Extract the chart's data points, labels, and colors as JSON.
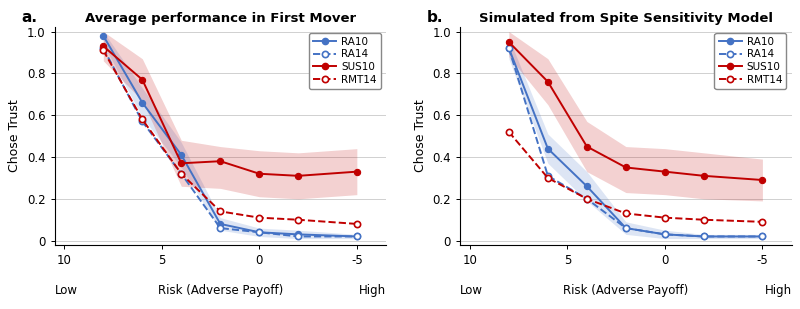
{
  "x_ticks": [
    10,
    5,
    0,
    -5
  ],
  "x_ticklabels": [
    "10",
    "5",
    "0",
    "-5"
  ],
  "xlim": [
    10.5,
    -6.5
  ],
  "ylim": [
    -0.02,
    1.02
  ],
  "y_ticks": [
    0,
    0.2,
    0.4,
    0.6,
    0.8,
    1.0
  ],
  "panel_titles": [
    "Average performance in First Mover",
    "Simulated from Spite Sensitivity Model"
  ],
  "panel_labels": [
    "a.",
    "b."
  ],
  "ylabel": "Chose Trust",
  "xlabel": "Risk (Adverse Payoff)",
  "x_data": [
    8,
    6,
    4,
    2,
    0,
    -2,
    -5
  ],
  "panel_a": {
    "RA10_y": [
      0.98,
      0.66,
      0.41,
      0.08,
      0.04,
      0.03,
      0.02
    ],
    "RA10_lo": [
      0.94,
      0.59,
      0.35,
      0.05,
      0.02,
      0.01,
      0.01
    ],
    "RA10_hi": [
      1.0,
      0.73,
      0.47,
      0.11,
      0.06,
      0.05,
      0.03
    ],
    "RA14_y": [
      0.92,
      0.57,
      0.32,
      0.06,
      0.04,
      0.02,
      0.02
    ],
    "RA14_lo": [
      0.87,
      0.5,
      0.26,
      0.03,
      0.02,
      0.01,
      0.01
    ],
    "RA14_hi": [
      0.97,
      0.64,
      0.38,
      0.09,
      0.06,
      0.03,
      0.03
    ],
    "SUS10_y": [
      0.93,
      0.77,
      0.37,
      0.38,
      0.32,
      0.31,
      0.33
    ],
    "SUS10_lo": [
      0.86,
      0.67,
      0.26,
      0.25,
      0.21,
      0.2,
      0.22
    ],
    "SUS10_hi": [
      1.0,
      0.87,
      0.48,
      0.45,
      0.43,
      0.42,
      0.44
    ],
    "RMT14_y": [
      0.91,
      0.58,
      0.32,
      0.14,
      0.11,
      0.1,
      0.08
    ],
    "RMT14_lo": [
      0.85,
      0.5,
      0.26,
      0.1,
      0.08,
      0.07,
      0.06
    ],
    "RMT14_hi": [
      0.97,
      0.66,
      0.38,
      0.18,
      0.14,
      0.13,
      0.1
    ]
  },
  "panel_b": {
    "RA10_y": [
      0.92,
      0.44,
      0.26,
      0.06,
      0.03,
      0.02,
      0.02
    ],
    "RA10_lo": [
      0.87,
      0.37,
      0.19,
      0.03,
      0.01,
      0.01,
      0.01
    ],
    "RA10_hi": [
      0.97,
      0.51,
      0.33,
      0.09,
      0.05,
      0.03,
      0.03
    ],
    "RA14_y": [
      0.92,
      0.31,
      0.2,
      0.06,
      0.03,
      0.02,
      0.02
    ],
    "RA14_lo": [
      0.87,
      0.25,
      0.14,
      0.03,
      0.02,
      0.01,
      0.01
    ],
    "RA14_hi": [
      0.97,
      0.37,
      0.26,
      0.09,
      0.04,
      0.03,
      0.03
    ],
    "SUS10_y": [
      0.95,
      0.76,
      0.45,
      0.35,
      0.33,
      0.31,
      0.29
    ],
    "SUS10_lo": [
      0.88,
      0.65,
      0.33,
      0.23,
      0.22,
      0.2,
      0.19
    ],
    "SUS10_hi": [
      1.0,
      0.87,
      0.57,
      0.45,
      0.44,
      0.42,
      0.39
    ],
    "RMT14_y": [
      0.52,
      0.3,
      0.2,
      0.13,
      0.11,
      0.1,
      0.09
    ],
    "RMT14_lo": [
      0.44,
      0.23,
      0.14,
      0.09,
      0.08,
      0.08,
      0.07
    ],
    "RMT14_hi": [
      0.6,
      0.37,
      0.26,
      0.17,
      0.14,
      0.12,
      0.11
    ]
  },
  "colors": {
    "blue": "#4472c4",
    "red": "#c00000"
  },
  "fill_alpha_blue": 0.18,
  "fill_alpha_red": 0.18,
  "background_color": "#ffffff",
  "grid_color": "#d0d0d0"
}
